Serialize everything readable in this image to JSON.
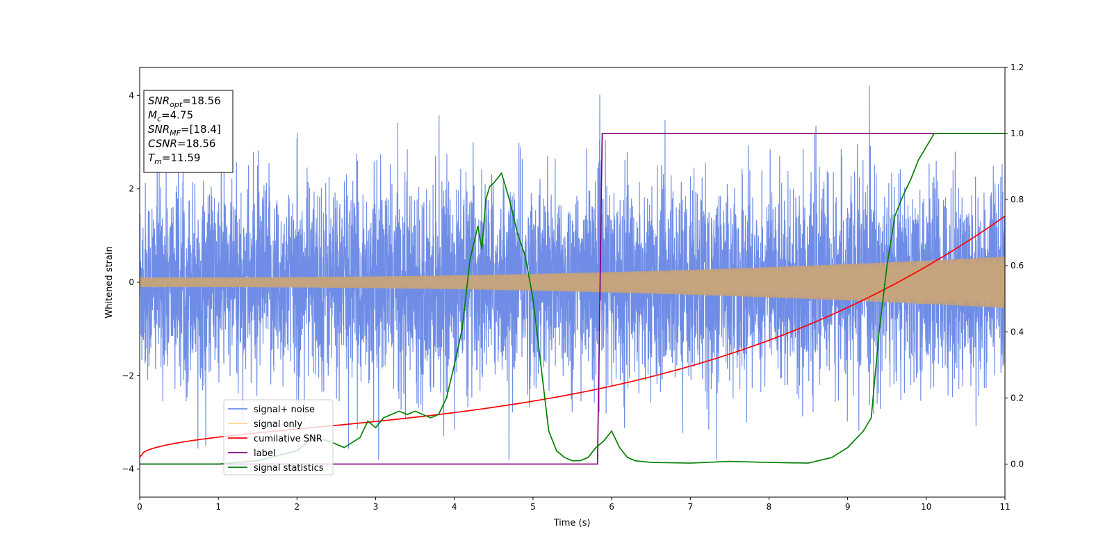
{
  "chart_data": {
    "type": "line",
    "xlabel": "Time (s)",
    "ylabel": "Whitened strain",
    "xlim": [
      0,
      11
    ],
    "ylim": [
      -4.6,
      4.6
    ],
    "y2lim": [
      -0.1,
      1.2
    ],
    "xticks": [
      "0",
      "1",
      "2",
      "3",
      "4",
      "5",
      "6",
      "7",
      "8",
      "9",
      "10",
      "11"
    ],
    "yticks": [
      "−4",
      "−2",
      "0",
      "2",
      "4"
    ],
    "y2ticks": [
      "0.0",
      "0.2",
      "0.4",
      "0.6",
      "0.8",
      "1.0",
      "1.2"
    ],
    "legend_position": "lower-left",
    "annotation": {
      "lines": [
        {
          "main": "SNR",
          "sub": "opt",
          "rest": "=18.56"
        },
        {
          "main": "M",
          "sub": "c",
          "rest": "=4.75"
        },
        {
          "main": "SNR",
          "sub": "MF",
          "rest": "=[18.4]"
        },
        {
          "main": "CSNR",
          "sub": "",
          "rest": "=18.56"
        },
        {
          "main": "T",
          "sub": "m",
          "rest": "=11.59"
        }
      ]
    },
    "series": [
      {
        "name": "signal+ noise",
        "color": "#6f8de6",
        "axis": "left",
        "kind": "noise",
        "amplitude_envelope": 1.9
      },
      {
        "name": "signal only",
        "color": "#fdd48a",
        "axis": "left",
        "kind": "chirp",
        "amplitude_start": 0.1,
        "amplitude_end": 0.55
      },
      {
        "name": "cumilative SNR",
        "color": "#ff0000",
        "axis": "right",
        "x": [
          0,
          0.5,
          1,
          2,
          3,
          4,
          5,
          6,
          7,
          8,
          9,
          10,
          11
        ],
        "values": [
          0.02,
          0.08,
          0.1,
          0.14,
          0.17,
          0.21,
          0.25,
          0.3,
          0.35,
          0.41,
          0.48,
          0.58,
          0.75
        ]
      },
      {
        "name": "label",
        "color": "#800080",
        "axis": "right",
        "x": [
          0,
          5.82,
          5.88,
          11
        ],
        "values": [
          0.0,
          0.0,
          1.0,
          1.0
        ]
      },
      {
        "name": "signal statistics",
        "color": "#008000",
        "axis": "right",
        "x": [
          0,
          1,
          1.5,
          2.0,
          2.2,
          2.4,
          2.6,
          2.8,
          2.9,
          3.0,
          3.1,
          3.2,
          3.3,
          3.4,
          3.5,
          3.6,
          3.7,
          3.8,
          3.9,
          4.0,
          4.1,
          4.2,
          4.3,
          4.35,
          4.4,
          4.45,
          4.5,
          4.6,
          4.7,
          4.8,
          4.9,
          5.0,
          5.1,
          5.2,
          5.3,
          5.4,
          5.5,
          5.6,
          5.7,
          5.8,
          5.9,
          6.0,
          6.1,
          6.2,
          6.3,
          6.5,
          7.0,
          7.5,
          8.0,
          8.5,
          8.8,
          9.0,
          9.2,
          9.3,
          9.4,
          9.5,
          9.6,
          9.7,
          9.8,
          9.9,
          10.0,
          10.1,
          10.2,
          10.5,
          11.0
        ],
        "values": [
          0.0,
          0.0,
          0.01,
          0.04,
          0.08,
          0.07,
          0.05,
          0.08,
          0.13,
          0.11,
          0.14,
          0.15,
          0.16,
          0.15,
          0.16,
          0.15,
          0.14,
          0.15,
          0.2,
          0.3,
          0.41,
          0.62,
          0.72,
          0.65,
          0.8,
          0.84,
          0.85,
          0.88,
          0.8,
          0.7,
          0.63,
          0.5,
          0.3,
          0.1,
          0.04,
          0.02,
          0.01,
          0.01,
          0.02,
          0.05,
          0.07,
          0.1,
          0.05,
          0.02,
          0.01,
          0.005,
          0.003,
          0.008,
          0.005,
          0.003,
          0.02,
          0.05,
          0.1,
          0.14,
          0.4,
          0.6,
          0.75,
          0.81,
          0.86,
          0.92,
          0.96,
          1.0,
          1.0,
          1.0,
          1.0
        ]
      }
    ]
  }
}
